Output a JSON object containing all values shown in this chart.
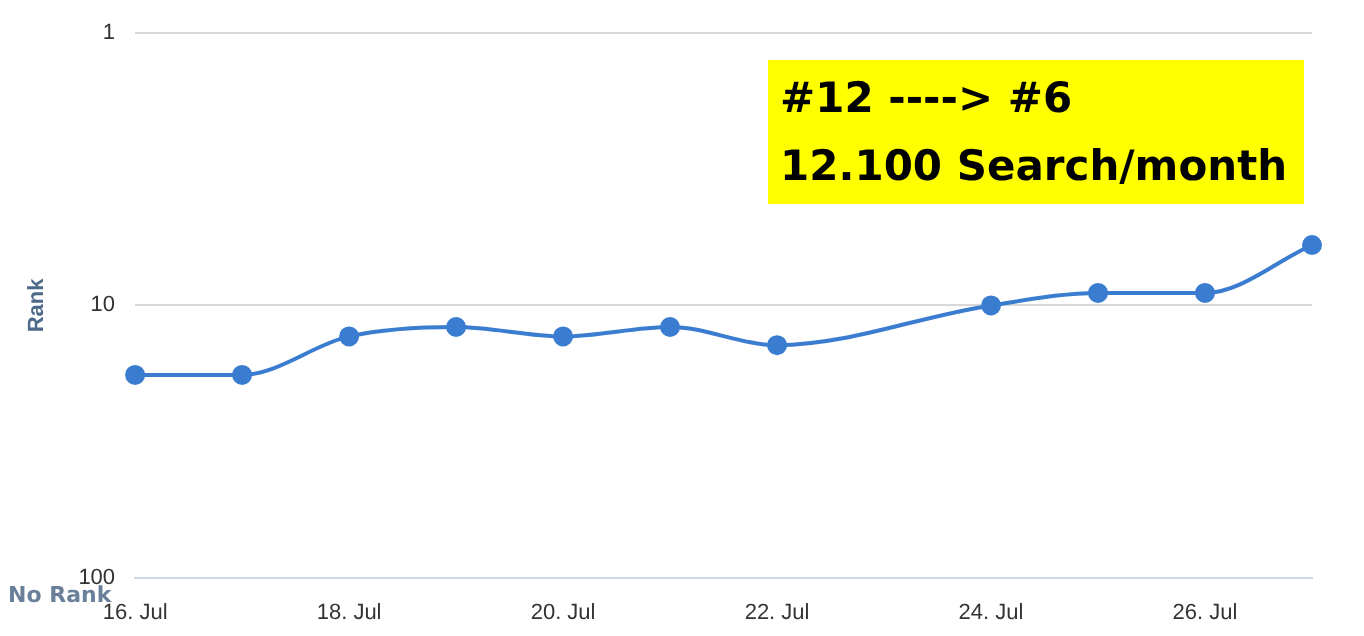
{
  "chart_data": {
    "type": "line",
    "ylabel": "Rank",
    "categories": [
      "16. Jul",
      null,
      "18. Jul",
      null,
      "20. Jul",
      null,
      "22. Jul",
      null,
      "24. Jul",
      null,
      "26. Jul",
      null
    ],
    "series": [
      {
        "color": "#3a7dd0",
        "values": [
          18,
          18,
          13,
          12,
          13,
          12,
          14,
          null,
          10,
          9,
          9,
          6
        ]
      }
    ],
    "ylim": [
      100,
      1
    ],
    "yticks": [
      1,
      10,
      100
    ],
    "log": true,
    "grid": "y",
    "legend": false,
    "marker": "circle",
    "line_style": "solid",
    "annotations": [
      "No Rank",
      "#12 ----> #6",
      "12.100 Search/month"
    ]
  }
}
